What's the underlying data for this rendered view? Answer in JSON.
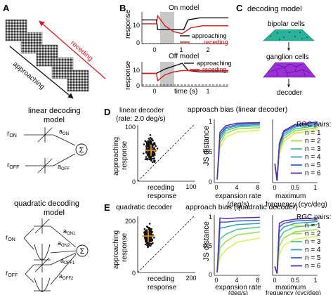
{
  "panels": {
    "A": {
      "label": "A",
      "receding": "receding",
      "approaching": "approaching",
      "colors": {
        "receding": "#d7191c",
        "approaching": "#111111"
      }
    },
    "B": {
      "label": "B",
      "on_title": "On model",
      "off_title": "Off model",
      "ylabel": "response",
      "xlabel": "time (s)",
      "yticks_top": [
        "10",
        "0"
      ],
      "yticks_bottom": [
        "10",
        "0"
      ],
      "xticks": [
        "0",
        "1",
        "2"
      ],
      "legend_approaching": "approaching",
      "legend_receding": "receding",
      "colors": {
        "approaching": "#111111",
        "receding": "#d7191c",
        "shade": "#c8c8c8"
      }
    },
    "C": {
      "label": "C",
      "title": "decoding model",
      "bipolar": "bipolar cells",
      "ganglion": "ganglion cells",
      "decoder": "decoder",
      "colors": {
        "bipolar": "#2ab39a",
        "ganglion": "#9b30d9"
      }
    },
    "linear_model": {
      "title_line1": "linear decoding",
      "title_line2": "model",
      "r": "r",
      "on": "ON",
      "off": "OFF",
      "a": "a",
      "sum": "Σ"
    },
    "quadratic_model": {
      "title_line1": "quadratic decoding",
      "title_line2": "model",
      "r": "r",
      "on": "ON",
      "off": "OFF",
      "a": "a",
      "on1": "ON1",
      "on2": "ON2",
      "off1": "OFF1",
      "off2": "OFF2",
      "sum": "Σ"
    },
    "D": {
      "label": "D",
      "scatter_title": "linear decoder",
      "scatter_subtitle": "(rate: 2.0 deg/s)",
      "scatter_ylabel_1": "approaching",
      "scatter_ylabel_2": "response",
      "scatter_xlabel_1": "receding",
      "scatter_xlabel_2": "response",
      "scatter_ticks": [
        "100",
        "0",
        "100"
      ],
      "bias_title": "approach bias (linear decoder)",
      "ylabel": "JS distance",
      "yticks": [
        "1",
        "0.5",
        "0"
      ],
      "left_xlabel_1": "expansion rate",
      "left_xlabel_2": "(deg/s)",
      "left_xticks": [
        "0",
        "4",
        "8"
      ],
      "right_xlabel_1": "maximum",
      "right_xlabel_2": "frequency (cyc/deg)",
      "right_xticks": [
        "0",
        "0.5",
        "1"
      ]
    },
    "E": {
      "label": "E",
      "scatter_title": "quadratic decoder",
      "scatter_subtitle": "",
      "scatter_ylabel_1": "approaching",
      "scatter_ylabel_2": "response",
      "scatter_xlabel_1": "receding",
      "scatter_xlabel_2": "response",
      "scatter_ticks": [
        "200",
        "0",
        "200"
      ],
      "bias_title": "approach bias (quadratic decoder)",
      "ylabel": "JS distance",
      "yticks": [
        "1",
        "0.5",
        "0"
      ],
      "left_xlabel_1": "expansion rate",
      "left_xlabel_2": "(deg/s)",
      "left_xticks": [
        "0",
        "4",
        "8"
      ],
      "right_xlabel_1": "maximum",
      "right_xlabel_2": "frequency (cyc/deg)",
      "right_xticks": [
        "0",
        "0.5",
        "1"
      ]
    },
    "legend": {
      "title": "RGC pairs:",
      "items": [
        "n = 1",
        "n = 2",
        "n = 3",
        "n = 4",
        "n = 5",
        "n = 6"
      ],
      "colors": [
        "#d9ef5a",
        "#9fdc4a",
        "#4fc489",
        "#2fa3c3",
        "#3b63c9",
        "#5a2aa8"
      ]
    }
  },
  "chart_data": [
    {
      "type": "line",
      "title": "On model",
      "xlabel": "time (s)",
      "ylabel": "response",
      "series": [
        {
          "name": "approaching",
          "x": [
            -0.5,
            0,
            0.05,
            0.2,
            0.5,
            0.8,
            0.95,
            1.1,
            1.5,
            2.5
          ],
          "y": [
            11,
            11,
            6,
            6,
            6,
            6,
            6,
            11,
            12,
            12
          ]
        },
        {
          "name": "receding",
          "x": [
            -0.5,
            0,
            0.05,
            0.3,
            0.6,
            0.9,
            1.2,
            1.6,
            2.5
          ],
          "y": [
            9,
            9,
            13,
            8,
            5,
            4,
            7,
            8,
            8
          ]
        }
      ]
    },
    {
      "type": "line",
      "title": "Off model",
      "xlabel": "time (s)",
      "ylabel": "response",
      "series": [
        {
          "name": "approaching",
          "x": [
            -0.5,
            0,
            0.3,
            0.6,
            0.9,
            1.1,
            1.5,
            2.5
          ],
          "y": [
            8,
            8,
            11,
            13,
            15,
            10,
            9,
            9
          ]
        },
        {
          "name": "receding",
          "x": [
            -0.5,
            0,
            0.05,
            0.3,
            0.6,
            0.9,
            1.2,
            1.6,
            2.5
          ],
          "y": [
            8,
            8,
            3,
            7,
            9,
            10,
            10,
            10,
            10
          ]
        }
      ]
    },
    {
      "type": "scatter",
      "title": "linear decoder",
      "subtitle": "(rate: 2.0 deg/s)",
      "xlabel": "receding response",
      "ylabel": "approaching response",
      "xlim": [
        0,
        100
      ],
      "ylim": [
        0,
        100
      ],
      "cluster_mean": [
        20,
        60
      ]
    },
    {
      "type": "scatter",
      "title": "quadratic decoder",
      "xlabel": "receding response",
      "ylabel": "approaching response",
      "xlim": [
        0,
        200
      ],
      "ylim": [
        0,
        200
      ],
      "cluster_mean": [
        30,
        130
      ]
    },
    {
      "type": "line",
      "title": "approach bias (linear decoder)",
      "xlabel": "expansion rate (deg/s)",
      "ylabel": "JS distance",
      "ylim": [
        0,
        1
      ],
      "x": [
        0.5,
        1,
        2,
        4,
        8
      ],
      "series": [
        {
          "name": "n = 1",
          "values": [
            0.05,
            0.55,
            0.72,
            0.8,
            0.83
          ]
        },
        {
          "name": "n = 2",
          "values": [
            0.05,
            0.62,
            0.78,
            0.85,
            0.87
          ]
        },
        {
          "name": "n = 3",
          "values": [
            0.05,
            0.68,
            0.82,
            0.88,
            0.9
          ]
        },
        {
          "name": "n = 4",
          "values": [
            0.05,
            0.72,
            0.85,
            0.9,
            0.92
          ]
        },
        {
          "name": "n = 5",
          "values": [
            0.05,
            0.76,
            0.87,
            0.92,
            0.94
          ]
        },
        {
          "name": "n = 6",
          "values": [
            0.05,
            0.8,
            0.9,
            0.94,
            0.95
          ]
        }
      ]
    },
    {
      "type": "line",
      "title": "approach bias (linear decoder)",
      "xlabel": "maximum frequency (cyc/deg)",
      "ylabel": "JS distance",
      "ylim": [
        0,
        1
      ],
      "x": [
        0.05,
        0.1,
        0.15,
        0.25,
        0.5,
        1
      ],
      "series": [
        {
          "name": "n = 1",
          "values": [
            0.3,
            0.03,
            0.45,
            0.65,
            0.78,
            0.84
          ]
        },
        {
          "name": "n = 2",
          "values": [
            0.3,
            0.03,
            0.5,
            0.7,
            0.82,
            0.87
          ]
        },
        {
          "name": "n = 3",
          "values": [
            0.3,
            0.03,
            0.55,
            0.74,
            0.85,
            0.9
          ]
        },
        {
          "name": "n = 4",
          "values": [
            0.3,
            0.03,
            0.58,
            0.77,
            0.88,
            0.92
          ]
        },
        {
          "name": "n = 5",
          "values": [
            0.3,
            0.03,
            0.6,
            0.8,
            0.9,
            0.94
          ]
        },
        {
          "name": "n = 6",
          "values": [
            0.3,
            0.03,
            0.62,
            0.82,
            0.92,
            0.96
          ]
        }
      ]
    },
    {
      "type": "line",
      "title": "approach bias (quadratic decoder)",
      "xlabel": "expansion rate (deg/s)",
      "ylabel": "JS distance",
      "ylim": [
        0,
        1
      ],
      "x": [
        0.5,
        1,
        2,
        4,
        8
      ],
      "series": [
        {
          "name": "n = 1",
          "values": [
            0.05,
            0.3,
            0.42,
            0.55,
            0.62
          ]
        },
        {
          "name": "n = 2",
          "values": [
            0.05,
            0.45,
            0.56,
            0.67,
            0.72
          ]
        },
        {
          "name": "n = 3",
          "values": [
            0.05,
            0.6,
            0.68,
            0.76,
            0.8
          ]
        },
        {
          "name": "n = 4",
          "values": [
            0.05,
            0.78,
            0.8,
            0.84,
            0.86
          ]
        },
        {
          "name": "n = 5",
          "values": [
            0.05,
            0.88,
            0.88,
            0.9,
            0.91
          ]
        },
        {
          "name": "n = 6",
          "values": [
            0.05,
            0.95,
            0.94,
            0.95,
            0.96
          ]
        }
      ]
    },
    {
      "type": "line",
      "title": "approach bias (quadratic decoder)",
      "xlabel": "maximum frequency (cyc/deg)",
      "ylabel": "JS distance",
      "ylim": [
        0,
        1
      ],
      "x": [
        0.05,
        0.1,
        0.15,
        0.25,
        0.5,
        1
      ],
      "series": [
        {
          "name": "n = 1",
          "values": [
            0.15,
            0.03,
            0.35,
            0.5,
            0.6,
            0.65
          ]
        },
        {
          "name": "n = 2",
          "values": [
            0.15,
            0.03,
            0.48,
            0.62,
            0.72,
            0.76
          ]
        },
        {
          "name": "n = 3",
          "values": [
            0.15,
            0.03,
            0.6,
            0.72,
            0.8,
            0.84
          ]
        },
        {
          "name": "n = 4",
          "values": [
            0.15,
            0.03,
            0.72,
            0.8,
            0.86,
            0.89
          ]
        },
        {
          "name": "n = 5",
          "values": [
            0.15,
            0.03,
            0.8,
            0.86,
            0.9,
            0.92
          ]
        },
        {
          "name": "n = 6",
          "values": [
            0.15,
            0.03,
            0.86,
            0.9,
            0.93,
            0.95
          ]
        }
      ]
    }
  ]
}
